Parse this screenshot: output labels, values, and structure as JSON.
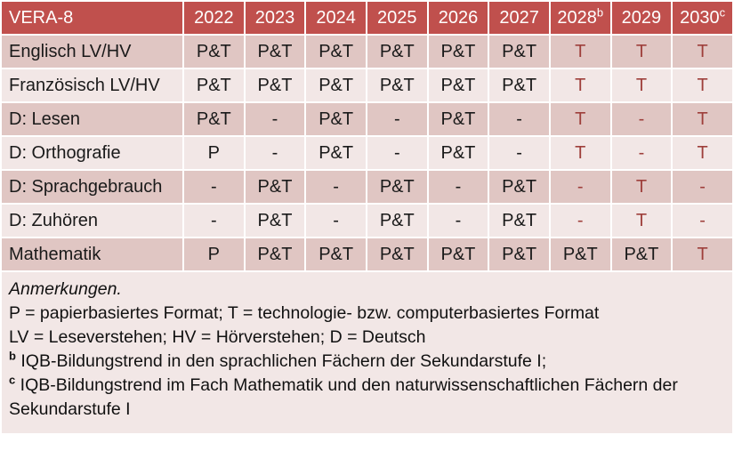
{
  "colors": {
    "header_bg": "#C0504D",
    "band_dark": "#E0C6C3",
    "band_light": "#F2E7E6",
    "accent_text": "#9E3F3B"
  },
  "table": {
    "title": "VERA-8",
    "columns": [
      {
        "label": "2022",
        "sup": ""
      },
      {
        "label": "2023",
        "sup": ""
      },
      {
        "label": "2024",
        "sup": ""
      },
      {
        "label": "2025",
        "sup": ""
      },
      {
        "label": "2026",
        "sup": ""
      },
      {
        "label": "2027",
        "sup": ""
      },
      {
        "label": "2028",
        "sup": "b"
      },
      {
        "label": "2029",
        "sup": ""
      },
      {
        "label": "2030",
        "sup": "c"
      }
    ],
    "rows": [
      {
        "label": "Englisch LV/HV",
        "cells": [
          {
            "v": "P&T",
            "red": false
          },
          {
            "v": "P&T",
            "red": false
          },
          {
            "v": "P&T",
            "red": false
          },
          {
            "v": "P&T",
            "red": false
          },
          {
            "v": "P&T",
            "red": false
          },
          {
            "v": "P&T",
            "red": false
          },
          {
            "v": "T",
            "red": true
          },
          {
            "v": "T",
            "red": true
          },
          {
            "v": "T",
            "red": true
          }
        ]
      },
      {
        "label": "Französisch LV/HV",
        "cells": [
          {
            "v": "P&T",
            "red": false
          },
          {
            "v": "P&T",
            "red": false
          },
          {
            "v": "P&T",
            "red": false
          },
          {
            "v": "P&T",
            "red": false
          },
          {
            "v": "P&T",
            "red": false
          },
          {
            "v": "P&T",
            "red": false
          },
          {
            "v": "T",
            "red": true
          },
          {
            "v": "T",
            "red": true
          },
          {
            "v": "T",
            "red": true
          }
        ]
      },
      {
        "label": "D: Lesen",
        "cells": [
          {
            "v": "P&T",
            "red": false
          },
          {
            "v": "-",
            "red": false
          },
          {
            "v": "P&T",
            "red": false
          },
          {
            "v": "-",
            "red": false
          },
          {
            "v": "P&T",
            "red": false
          },
          {
            "v": "-",
            "red": false
          },
          {
            "v": "T",
            "red": true
          },
          {
            "v": "-",
            "red": true
          },
          {
            "v": "T",
            "red": true
          }
        ]
      },
      {
        "label": "D: Orthografie",
        "cells": [
          {
            "v": "P",
            "red": false
          },
          {
            "v": "-",
            "red": false
          },
          {
            "v": "P&T",
            "red": false
          },
          {
            "v": "-",
            "red": false
          },
          {
            "v": "P&T",
            "red": false
          },
          {
            "v": "-",
            "red": false
          },
          {
            "v": "T",
            "red": true
          },
          {
            "v": "-",
            "red": true
          },
          {
            "v": "T",
            "red": true
          }
        ]
      },
      {
        "label": "D: Sprachgebrauch",
        "cells": [
          {
            "v": "-",
            "red": false
          },
          {
            "v": "P&T",
            "red": false
          },
          {
            "v": "-",
            "red": false
          },
          {
            "v": "P&T",
            "red": false
          },
          {
            "v": "-",
            "red": false
          },
          {
            "v": "P&T",
            "red": false
          },
          {
            "v": "-",
            "red": true
          },
          {
            "v": "T",
            "red": true
          },
          {
            "v": "-",
            "red": true
          }
        ]
      },
      {
        "label": "D: Zuhören",
        "cells": [
          {
            "v": "-",
            "red": false
          },
          {
            "v": "P&T",
            "red": false
          },
          {
            "v": "-",
            "red": false
          },
          {
            "v": "P&T",
            "red": false
          },
          {
            "v": "-",
            "red": false
          },
          {
            "v": "P&T",
            "red": false
          },
          {
            "v": "-",
            "red": true
          },
          {
            "v": "T",
            "red": true
          },
          {
            "v": "-",
            "red": true
          }
        ]
      },
      {
        "label": "Mathematik",
        "cells": [
          {
            "v": "P",
            "red": false
          },
          {
            "v": "P&T",
            "red": false
          },
          {
            "v": "P&T",
            "red": false
          },
          {
            "v": "P&T",
            "red": false
          },
          {
            "v": "P&T",
            "red": false
          },
          {
            "v": "P&T",
            "red": false
          },
          {
            "v": "P&T",
            "red": false
          },
          {
            "v": "P&T",
            "red": false
          },
          {
            "v": "T",
            "red": true
          }
        ]
      }
    ]
  },
  "notes": {
    "heading": "Anmerkungen.",
    "line_formats": "P = papierbasiertes Format; T = technologie- bzw. computerbasiertes Format",
    "line_abbrev": "LV = Leseverstehen; HV = Hörverstehen; D = Deutsch",
    "footnote_b": {
      "marker": "b",
      "text": "IQB-Bildungstrend in den sprachlichen Fächern der Sekundarstufe I;"
    },
    "footnote_c": {
      "marker": "c",
      "text": "IQB-Bildungstrend im Fach Mathematik und den naturwissenschaftlichen Fächern der Sekundarstufe I"
    }
  }
}
